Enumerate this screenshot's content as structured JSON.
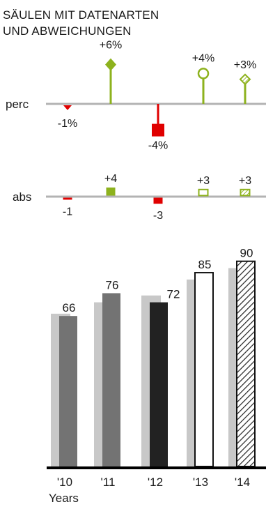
{
  "title": {
    "line1": "SÄULEN MIT DATENARTEN",
    "line2": "UND ABWEICHUNGEN"
  },
  "colors": {
    "positive": "#8db21d",
    "negative": "#e00000",
    "axis": "#b3b3b3",
    "previous_year": "#c8c8c8",
    "actual_dark": "#222222",
    "actual_grey": "#737373",
    "baseline": "#000000"
  },
  "chart_data": [
    {
      "type": "deviation-pins",
      "row_label": "perc",
      "categories": [
        "'10",
        "'11",
        "'12",
        "'13",
        "'14"
      ],
      "values": [
        -1,
        6,
        -4,
        4,
        3
      ],
      "labels": [
        "-1%",
        "+6%",
        "-4%",
        "+4%",
        "+3%"
      ],
      "markers": [
        "triangle",
        "diamond-filled",
        "square-filled",
        "circle-outline",
        "diamond-hatched"
      ]
    },
    {
      "type": "deviation-bars",
      "row_label": "abs",
      "categories": [
        "'10",
        "'11",
        "'12",
        "'13",
        "'14"
      ],
      "values": [
        -1,
        4,
        -3,
        3,
        3
      ],
      "labels": [
        "-1",
        "+4",
        "-3",
        "+3",
        "+3"
      ],
      "styles": [
        "solid",
        "solid",
        "solid",
        "outline",
        "hatched"
      ]
    },
    {
      "type": "bar",
      "xlabel": "Years",
      "categories": [
        "'10",
        "'11",
        "'12",
        "'13",
        "'14"
      ],
      "series": [
        {
          "values": [
            67,
            72,
            75,
            82,
            87
          ],
          "style": "light-grey"
        },
        {
          "values": [
            66,
            76,
            72,
            85,
            90
          ],
          "styles": [
            "grey",
            "grey",
            "dark",
            "outline",
            "hatched"
          ]
        }
      ],
      "labels": [
        "66",
        "76",
        "72",
        "85",
        "90"
      ],
      "ylim": [
        0,
        90
      ]
    }
  ]
}
